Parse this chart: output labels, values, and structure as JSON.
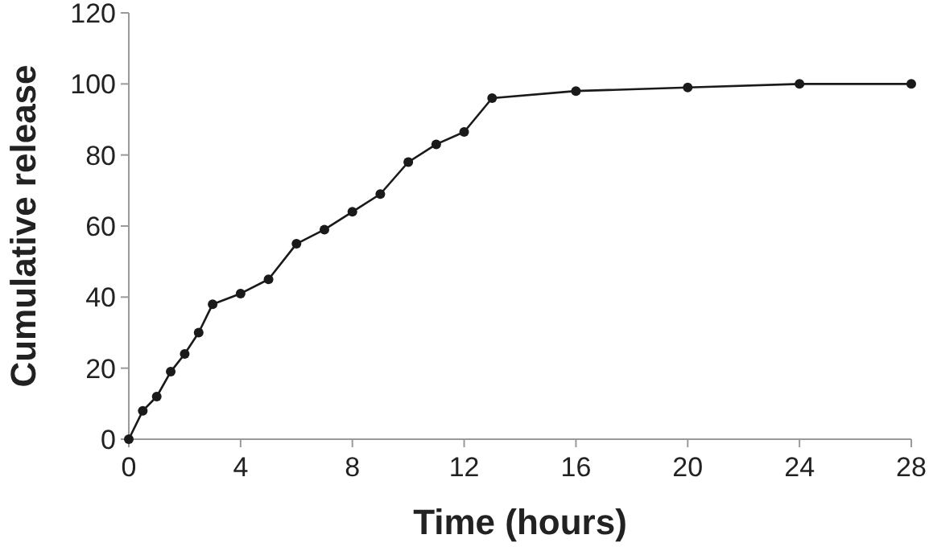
{
  "chart_data": {
    "type": "line",
    "xlabel": "Time (hours)",
    "ylabel": "Cumulative release",
    "x": [
      0,
      0.5,
      1,
      1.5,
      2,
      2.5,
      3,
      4,
      5,
      6,
      7,
      8,
      9,
      10,
      11,
      12,
      13,
      16,
      20,
      24,
      28
    ],
    "series": [
      {
        "color": "#1a1a1a",
        "values": [
          0,
          8,
          12,
          19,
          24,
          30,
          38,
          41,
          45,
          55,
          59,
          64,
          69,
          78,
          83,
          86.5,
          96,
          98,
          99,
          100,
          100
        ]
      }
    ],
    "xlim": [
      0,
      28
    ],
    "xticks": [
      0,
      4,
      8,
      12,
      16,
      20,
      24,
      28
    ],
    "ylim": [
      0,
      120
    ],
    "yticks": [
      0,
      20,
      40,
      60,
      80,
      100,
      120
    ],
    "marker": "circle",
    "line_style": "solid"
  }
}
